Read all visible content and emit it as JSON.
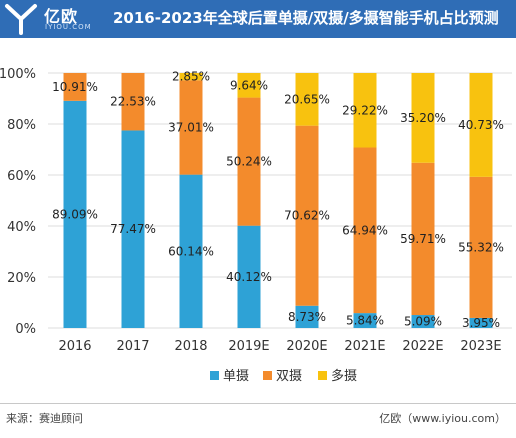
{
  "brand": {
    "name": "亿欧",
    "sub": "IYIOU.COM"
  },
  "title": "2016-2023年全球后置单摄/双摄/多摄智能手机占比预测",
  "chart_data": {
    "type": "bar",
    "stacked": true,
    "categories": [
      "2016",
      "2017",
      "2018",
      "2019E",
      "2020E",
      "2021E",
      "2022E",
      "2023E"
    ],
    "series": [
      {
        "name": "单摄",
        "color": "#2ea2d6",
        "values": [
          89.09,
          77.47,
          60.14,
          40.12,
          8.73,
          5.84,
          5.09,
          3.95
        ],
        "labels": [
          "89.09%",
          "77.47%",
          "60.14%",
          "40.12%",
          "8.73%",
          "5.84%",
          "5.09%",
          "3.95%"
        ]
      },
      {
        "name": "双摄",
        "color": "#f38b2c",
        "values": [
          10.91,
          22.53,
          37.01,
          50.24,
          70.62,
          64.94,
          59.71,
          55.32
        ],
        "labels": [
          "10.91%",
          "22.53%",
          "37.01%",
          "50.24%",
          "70.62%",
          "64.94%",
          "59.71%",
          "55.32%"
        ]
      },
      {
        "name": "多摄",
        "color": "#f8c20f",
        "values": [
          0,
          0,
          2.85,
          9.64,
          20.65,
          29.22,
          35.2,
          40.73
        ],
        "labels": [
          "",
          "",
          "2.85%",
          "9.64%",
          "20.65%",
          "29.22%",
          "35.20%",
          "40.73%"
        ]
      }
    ],
    "ylim": [
      0,
      100
    ],
    "yticks": [
      "0%",
      "20%",
      "40%",
      "60%",
      "80%",
      "100%"
    ],
    "grid": true,
    "legend_position": "bottom"
  },
  "footer": {
    "source": "来源：赛迪顾问",
    "credit": "亿欧（www.iyiou.com）"
  }
}
